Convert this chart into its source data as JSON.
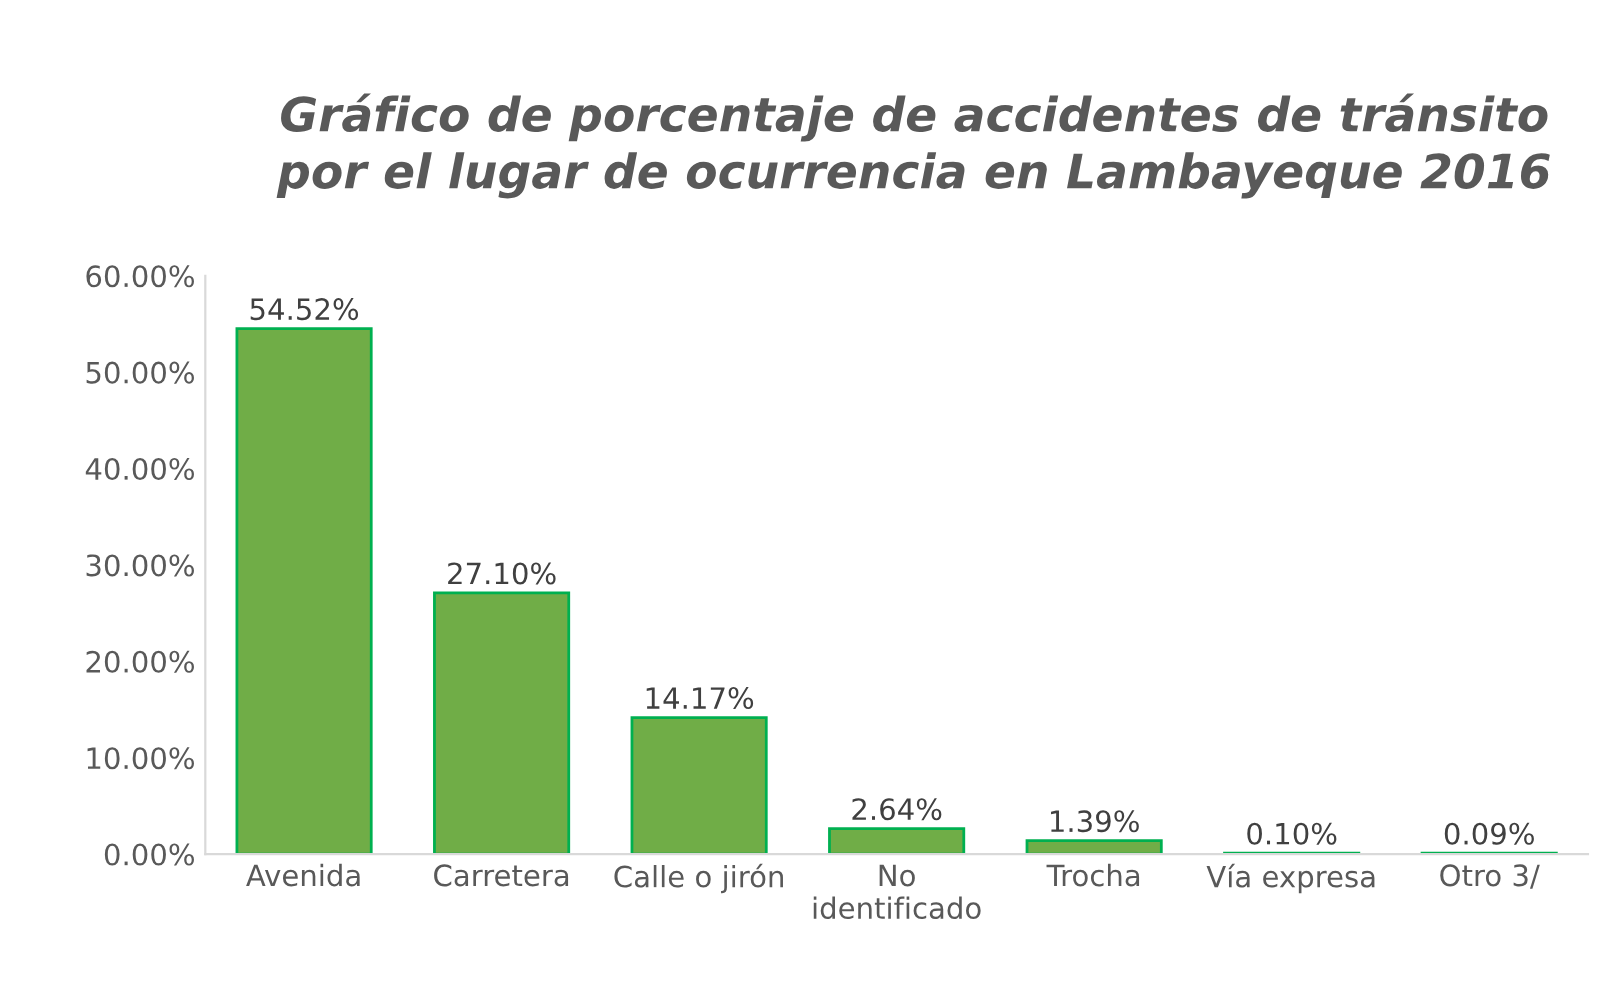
{
  "chart_data": {
    "type": "bar",
    "title": "Gráfico de porcentaje de accidentes de tránsito\npor el lugar de ocurrencia en Lambayeque 2016",
    "categories": [
      "Avenida",
      "Carretera",
      "Calle o jirón",
      "No\nidentificado",
      "Trocha",
      "Vía expresa",
      "Otro 3/"
    ],
    "values": [
      54.52,
      27.1,
      14.17,
      2.64,
      1.39,
      0.1,
      0.09
    ],
    "value_labels": [
      "54.52%",
      "27.10%",
      "14.17%",
      "2.64%",
      "1.39%",
      "0.10%",
      "0.09%"
    ],
    "color": "#70ad47",
    "ylim": [
      0,
      60
    ],
    "yticks": [
      {
        "value": 0,
        "label": "0.00%"
      },
      {
        "value": 10,
        "label": "10.00%"
      },
      {
        "value": 20,
        "label": "20.00%"
      },
      {
        "value": 30,
        "label": "30.00%"
      },
      {
        "value": 40,
        "label": "40.00%"
      },
      {
        "value": 50,
        "label": "50.00%"
      },
      {
        "value": 60,
        "label": "60.00%"
      }
    ],
    "grid": false,
    "legend": false
  }
}
